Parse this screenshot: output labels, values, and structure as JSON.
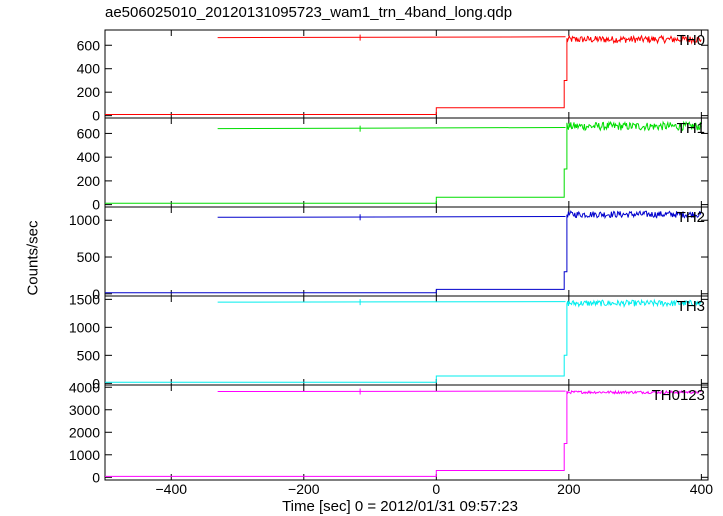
{
  "title": "ae506025010_20120131095723_wam1_trn_4band_long.qdp",
  "ylabel": "Counts/sec",
  "xlabel": "Time [sec] 0 = 2012/01/31 09:57:23",
  "colors": {
    "TH0": "#ff0000",
    "TH1": "#00dd00",
    "TH2": "#0000cc",
    "TH3": "#00eeee",
    "TH0123": "#ff00ff"
  },
  "chart_data": {
    "type": "line",
    "xlim": [
      -500,
      410
    ],
    "x_ticks": [
      -400,
      -200,
      0,
      200,
      400
    ],
    "grid": false,
    "panels": [
      {
        "name": "TH0",
        "ylim": [
          -20,
          730
        ],
        "y_ticks": [
          0,
          200,
          400,
          600
        ],
        "upper_trace": {
          "x_start": -330,
          "x_end": 195,
          "value_start": 665,
          "value_end": 672
        },
        "levels": [
          {
            "x_start": -500,
            "x_end": 0,
            "value": 10
          },
          {
            "x_start": 0,
            "x_end": 193,
            "value": 68
          },
          {
            "x_start": 193,
            "x_end": 197,
            "value": 300
          },
          {
            "x_start": 197,
            "x_end": 400,
            "value": 650,
            "noise": 30
          }
        ]
      },
      {
        "name": "TH1",
        "ylim": [
          -20,
          730
        ],
        "y_ticks": [
          0,
          200,
          400,
          600
        ],
        "upper_trace": {
          "x_start": -330,
          "x_end": 195,
          "value_start": 640,
          "value_end": 650
        },
        "levels": [
          {
            "x_start": -500,
            "x_end": 0,
            "value": 12
          },
          {
            "x_start": 0,
            "x_end": 193,
            "value": 62
          },
          {
            "x_start": 193,
            "x_end": 197,
            "value": 300
          },
          {
            "x_start": 197,
            "x_end": 400,
            "value": 660,
            "noise": 35
          }
        ]
      },
      {
        "name": "TH2",
        "ylim": [
          -30,
          1180
        ],
        "y_ticks": [
          0,
          500,
          1000
        ],
        "upper_trace": {
          "x_start": -330,
          "x_end": 195,
          "value_start": 1040,
          "value_end": 1050
        },
        "levels": [
          {
            "x_start": -500,
            "x_end": 0,
            "value": 15
          },
          {
            "x_start": 0,
            "x_end": 193,
            "value": 60
          },
          {
            "x_start": 193,
            "x_end": 197,
            "value": 300
          },
          {
            "x_start": 197,
            "x_end": 400,
            "value": 1080,
            "noise": 45
          }
        ]
      },
      {
        "name": "TH3",
        "ylim": [
          -30,
          1560
        ],
        "y_ticks": [
          0,
          500,
          1000,
          1500
        ],
        "upper_trace": {
          "x_start": -330,
          "x_end": 195,
          "value_start": 1450,
          "value_end": 1460
        },
        "levels": [
          {
            "x_start": -500,
            "x_end": 0,
            "value": 20
          },
          {
            "x_start": 0,
            "x_end": 193,
            "value": 130
          },
          {
            "x_start": 193,
            "x_end": 197,
            "value": 500
          },
          {
            "x_start": 197,
            "x_end": 400,
            "value": 1430,
            "noise": 55
          }
        ]
      },
      {
        "name": "TH0123",
        "ylim": [
          -120,
          4100
        ],
        "y_ticks": [
          0,
          1000,
          2000,
          3000,
          4000
        ],
        "upper_trace": {
          "x_start": -330,
          "x_end": 195,
          "value_start": 3810,
          "value_end": 3830
        },
        "levels": [
          {
            "x_start": -500,
            "x_end": 0,
            "value": 40
          },
          {
            "x_start": 0,
            "x_end": 193,
            "value": 300
          },
          {
            "x_start": 193,
            "x_end": 197,
            "value": 1500
          },
          {
            "x_start": 197,
            "x_end": 400,
            "value": 3780,
            "noise": 60
          }
        ]
      }
    ]
  }
}
